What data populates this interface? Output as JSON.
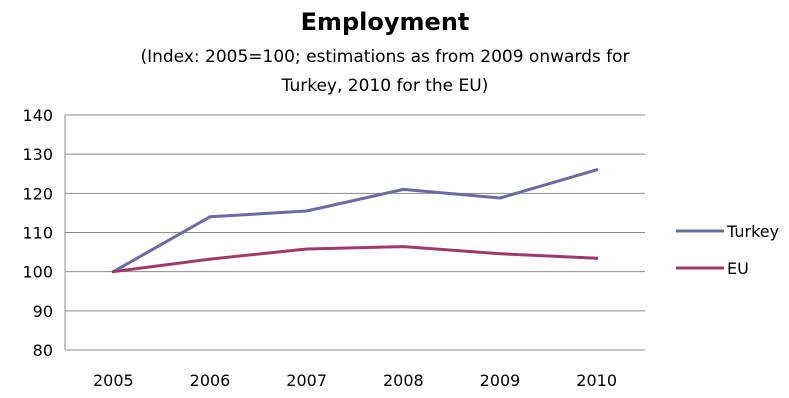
{
  "chart_data": {
    "type": "line",
    "title": "Employment",
    "subtitle_lines": [
      "(Index: 2005=100; estimations as from 2009 onwards for",
      "Turkey, 2010 for the EU)"
    ],
    "xlabel": "",
    "ylabel": "",
    "categories": [
      "2005",
      "2006",
      "2007",
      "2008",
      "2009",
      "2010"
    ],
    "ylim": [
      80,
      140
    ],
    "yticks": [
      80,
      90,
      100,
      110,
      120,
      130,
      140
    ],
    "grid": true,
    "legend_position": "right",
    "series": [
      {
        "name": "Turkey",
        "color": "#6b6b9f",
        "values": [
          100,
          114,
          115.5,
          121,
          118.8,
          126
        ]
      },
      {
        "name": "EU",
        "color": "#9e3a6a",
        "values": [
          100,
          103.2,
          105.8,
          106.4,
          104.6,
          103.4
        ]
      }
    ]
  }
}
